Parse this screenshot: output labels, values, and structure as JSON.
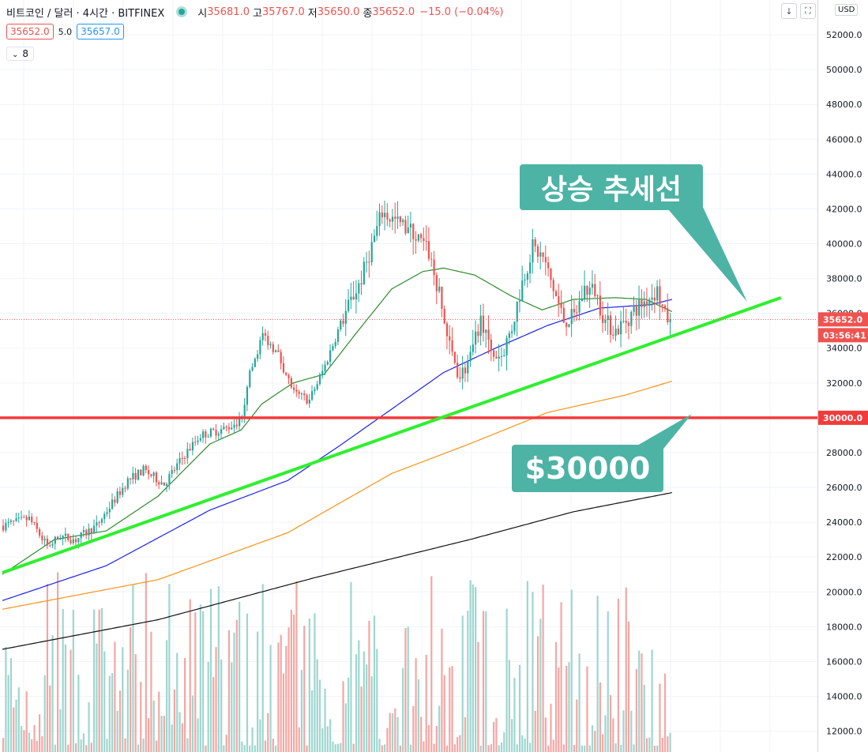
{
  "header": {
    "symbol": "비트코인 / 달러 · 4시간 · BITFINEX",
    "open_label": "시",
    "open": "35681.0",
    "high_label": "고",
    "high": "35767.0",
    "low_label": "저",
    "low": "35650.0",
    "close_label": "종",
    "close": "35652.0",
    "change": "−15.0 (−0.04%)"
  },
  "quote": {
    "bid": "35652.0",
    "spread": "5.0",
    "ask": "35657.0"
  },
  "indicator_badge": "8",
  "toolbar": {
    "arrow_icon": "arrow-down-icon",
    "fullscreen_icon": "fullscreen-icon",
    "currency": "USD"
  },
  "annotations": {
    "trend_label": "상승 추세선",
    "level_label": "$30000"
  },
  "price_labels": {
    "last_price": "35652.0",
    "countdown": "03:56:41",
    "level": "30000.0"
  },
  "colors": {
    "up": "#26a69a",
    "down": "#ef5350",
    "trendline": "#2ef02e",
    "level_line": "#f23b3b",
    "ma_green": "#2e8b2e",
    "ma_blue": "#1c23e6",
    "ma_orange": "#f7931a",
    "ma_black": "#111111",
    "callout": "#4db3a5"
  },
  "chart_data": {
    "type": "candlestick",
    "ylim": [
      10800,
      54000
    ],
    "y_ticks": [
      "12000.0",
      "14000.0",
      "16000.0",
      "18000.0",
      "20000.0",
      "22000.0",
      "24000.0",
      "26000.0",
      "28000.0",
      "30000.0",
      "32000.0",
      "34000.0",
      "36000.0",
      "38000.0",
      "40000.0",
      "42000.0",
      "44000.0",
      "46000.0",
      "48000.0",
      "50000.0",
      "52000.0"
    ],
    "anchors": [
      [
        0,
        23800
      ],
      [
        10,
        24200
      ],
      [
        17,
        22600
      ],
      [
        22,
        23200
      ],
      [
        28,
        23000
      ],
      [
        36,
        23800
      ],
      [
        48,
        26400
      ],
      [
        54,
        27000
      ],
      [
        62,
        26200
      ],
      [
        70,
        27900
      ],
      [
        76,
        29000
      ],
      [
        86,
        29400
      ],
      [
        92,
        29900
      ],
      [
        94,
        32000
      ],
      [
        100,
        34800
      ],
      [
        106,
        33600
      ],
      [
        112,
        31400
      ],
      [
        118,
        31000
      ],
      [
        124,
        33000
      ],
      [
        130,
        35400
      ],
      [
        138,
        38000
      ],
      [
        146,
        41800
      ],
      [
        152,
        41200
      ],
      [
        158,
        40600
      ],
      [
        164,
        39500
      ],
      [
        168,
        37000
      ],
      [
        172,
        34000
      ],
      [
        176,
        32400
      ],
      [
        180,
        33400
      ],
      [
        184,
        35600
      ],
      [
        188,
        33600
      ],
      [
        192,
        33600
      ],
      [
        196,
        35200
      ],
      [
        200,
        37800
      ],
      [
        204,
        39800
      ],
      [
        208,
        39200
      ],
      [
        212,
        37400
      ],
      [
        216,
        35600
      ],
      [
        220,
        35800
      ],
      [
        224,
        37400
      ],
      [
        228,
        37300
      ],
      [
        232,
        35500
      ],
      [
        236,
        35000
      ],
      [
        240,
        35600
      ],
      [
        244,
        36300
      ],
      [
        248,
        36800
      ],
      [
        252,
        37300
      ],
      [
        255,
        35800
      ],
      [
        257,
        35652
      ]
    ],
    "ma_green": [
      [
        0,
        21000
      ],
      [
        20,
        23000
      ],
      [
        40,
        23500
      ],
      [
        60,
        25500
      ],
      [
        80,
        28500
      ],
      [
        92,
        29300
      ],
      [
        100,
        30800
      ],
      [
        112,
        32000
      ],
      [
        124,
        32500
      ],
      [
        136,
        34800
      ],
      [
        150,
        37400
      ],
      [
        162,
        38400
      ],
      [
        170,
        38600
      ],
      [
        182,
        38200
      ],
      [
        196,
        37000
      ],
      [
        208,
        36200
      ],
      [
        220,
        36800
      ],
      [
        236,
        36900
      ],
      [
        248,
        36800
      ],
      [
        258,
        36100
      ]
    ],
    "ma_blue": [
      [
        0,
        19500
      ],
      [
        40,
        21500
      ],
      [
        80,
        24700
      ],
      [
        110,
        26400
      ],
      [
        130,
        28400
      ],
      [
        150,
        30500
      ],
      [
        170,
        32600
      ],
      [
        190,
        34000
      ],
      [
        210,
        35300
      ],
      [
        230,
        36300
      ],
      [
        250,
        36500
      ],
      [
        258,
        36800
      ]
    ],
    "ma_orange": [
      [
        0,
        19000
      ],
      [
        60,
        20700
      ],
      [
        110,
        23400
      ],
      [
        150,
        26800
      ],
      [
        180,
        28500
      ],
      [
        210,
        30300
      ],
      [
        240,
        31300
      ],
      [
        258,
        32100
      ]
    ],
    "ma_black": [
      [
        0,
        16700
      ],
      [
        60,
        18400
      ],
      [
        120,
        20800
      ],
      [
        180,
        23000
      ],
      [
        220,
        24600
      ],
      [
        258,
        25700
      ]
    ],
    "trendline": [
      [
        0,
        21100
      ],
      [
        300,
        36900
      ]
    ],
    "level": 30000,
    "volume_max": 21200,
    "volume_floor": 11000
  }
}
